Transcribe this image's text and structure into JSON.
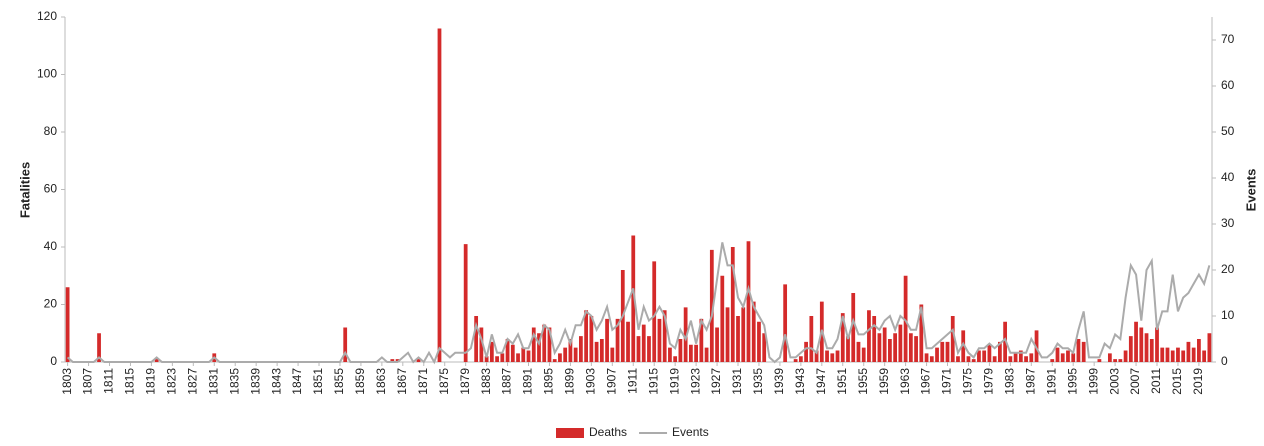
{
  "chart_data": {
    "type": "bar",
    "categories": [
      "1803",
      null,
      null,
      null,
      "1807",
      null,
      null,
      null,
      "1811",
      null,
      null,
      null,
      "1815",
      null,
      null,
      null,
      "1819",
      null,
      null,
      null,
      "1823",
      null,
      null,
      null,
      "1827",
      null,
      null,
      null,
      "1831",
      null,
      null,
      null,
      "1835",
      null,
      null,
      null,
      "1839",
      null,
      null,
      null,
      "1843",
      null,
      null,
      null,
      "1847",
      null,
      null,
      null,
      "1851",
      null,
      null,
      null,
      "1855",
      null,
      null,
      null,
      "1859",
      null,
      null,
      null,
      "1863",
      null,
      null,
      null,
      "1867",
      null,
      null,
      null,
      "1871",
      null,
      null,
      null,
      "1875",
      null,
      null,
      null,
      "1879",
      null,
      null,
      null,
      "1883",
      null,
      null,
      null,
      "1887",
      null,
      null,
      null,
      "1891",
      null,
      null,
      null,
      "1895",
      null,
      null,
      null,
      "1899",
      null,
      null,
      null,
      "1903",
      null,
      null,
      null,
      "1907",
      null,
      null,
      null,
      "1911",
      null,
      null,
      null,
      "1915",
      null,
      null,
      null,
      "1919",
      null,
      null,
      null,
      "1923",
      null,
      null,
      null,
      "1927",
      null,
      null,
      null,
      "1931",
      null,
      null,
      null,
      "1935",
      null,
      null,
      null,
      "1939",
      null,
      null,
      null,
      "1943",
      null,
      null,
      null,
      "1947",
      null,
      null,
      null,
      "1951",
      null,
      null,
      null,
      "1955",
      null,
      null,
      null,
      "1959",
      null,
      null,
      null,
      "1963",
      null,
      null,
      null,
      "1967",
      null,
      null,
      null,
      "1971",
      null,
      null,
      null,
      "1975",
      null,
      null,
      null,
      "1979",
      null,
      null,
      null,
      "1983",
      null,
      null,
      null,
      "1987",
      null,
      null,
      null,
      "1991",
      null,
      null,
      null,
      "1995",
      null,
      null,
      null,
      "1999",
      null,
      null,
      null,
      "2003",
      null,
      null,
      null,
      "2007",
      null,
      null,
      null,
      "2011",
      null,
      null,
      null,
      "2015",
      null,
      null,
      null,
      "2019",
      null,
      null
    ],
    "series": [
      {
        "name": "Deaths",
        "type": "bar",
        "color": "#d42a2a",
        "values": [
          26,
          0,
          0,
          0,
          0,
          0,
          10,
          0,
          0,
          0,
          0,
          0,
          0,
          0,
          0,
          0,
          0,
          1,
          0,
          0,
          0,
          0,
          0,
          0,
          0,
          0,
          0,
          0,
          3,
          0,
          0,
          0,
          0,
          0,
          0,
          0,
          0,
          0,
          0,
          0,
          0,
          0,
          0,
          0,
          0,
          0,
          0,
          0,
          0,
          0,
          0,
          0,
          0,
          12,
          0,
          0,
          0,
          0,
          0,
          0,
          0,
          0,
          1,
          1,
          0,
          0,
          0,
          1,
          0,
          0,
          0,
          116,
          0,
          0,
          0,
          0,
          41,
          0,
          16,
          12,
          2,
          7,
          2,
          3,
          8,
          6,
          3,
          5,
          4,
          12,
          10,
          13,
          12,
          1,
          3,
          5,
          8,
          5,
          9,
          18,
          16,
          7,
          8,
          15,
          5,
          15,
          32,
          14,
          44,
          9,
          13,
          9,
          35,
          15,
          18,
          5,
          2,
          8,
          19,
          6,
          6,
          15,
          5,
          39,
          12,
          30,
          19,
          40,
          16,
          19,
          42,
          21,
          14,
          10,
          0,
          0,
          0,
          27,
          0,
          1,
          2,
          7,
          16,
          4,
          21,
          4,
          3,
          4,
          17,
          9,
          24,
          7,
          5,
          18,
          16,
          10,
          12,
          8,
          10,
          13,
          30,
          10,
          9,
          20,
          3,
          2,
          5,
          7,
          7,
          16,
          2,
          11,
          2,
          1,
          4,
          4,
          6,
          2,
          7,
          14,
          2,
          3,
          4,
          2,
          3,
          11,
          0,
          0,
          1,
          5,
          3,
          4,
          3,
          8,
          7,
          0,
          0,
          1,
          0,
          3,
          1,
          1,
          4,
          9,
          14,
          12,
          10,
          8,
          12,
          5,
          5,
          4,
          5,
          4,
          7,
          5,
          8,
          4,
          10
        ]
      },
      {
        "name": "Events",
        "type": "line",
        "axis": "y2",
        "color": "#ababab",
        "values": [
          1,
          0,
          0,
          0,
          0,
          0,
          1,
          0,
          0,
          0,
          0,
          0,
          0,
          0,
          0,
          0,
          0,
          1,
          0,
          0,
          0,
          0,
          0,
          0,
          0,
          0,
          0,
          0,
          1,
          0,
          0,
          0,
          0,
          0,
          0,
          0,
          0,
          0,
          0,
          0,
          0,
          0,
          0,
          0,
          0,
          0,
          0,
          0,
          0,
          0,
          0,
          0,
          0,
          2,
          0,
          0,
          0,
          0,
          0,
          0,
          1,
          0,
          0,
          0,
          1,
          2,
          0,
          1,
          0,
          2,
          0,
          3,
          2,
          1,
          2,
          2,
          2,
          3,
          8,
          5,
          1,
          6,
          2,
          2,
          5,
          4,
          6,
          3,
          3,
          6,
          4,
          8,
          7,
          2,
          4,
          7,
          4,
          8,
          8,
          11,
          10,
          7,
          9,
          12,
          7,
          8,
          10,
          13,
          16,
          7,
          12,
          9,
          10,
          12,
          10,
          4,
          3,
          7,
          5,
          9,
          4,
          9,
          7,
          10,
          18,
          26,
          21,
          21,
          14,
          12,
          16,
          12,
          10,
          8,
          1,
          0,
          1,
          6,
          1,
          1,
          2,
          3,
          3,
          2,
          7,
          3,
          3,
          5,
          10,
          5,
          9,
          6,
          6,
          7,
          8,
          7,
          9,
          10,
          7,
          10,
          9,
          7,
          7,
          12,
          3,
          3,
          4,
          5,
          6,
          7,
          2,
          4,
          2,
          1,
          3,
          3,
          4,
          3,
          4,
          5,
          2,
          2,
          2,
          2,
          5,
          3,
          1,
          1,
          2,
          4,
          3,
          3,
          2,
          7,
          11,
          1,
          1,
          1,
          4,
          3,
          6,
          5,
          14,
          21,
          19,
          9,
          20,
          22,
          7,
          11,
          11,
          19,
          11,
          14,
          15,
          17,
          19,
          17,
          21
        ]
      }
    ],
    "y_label": "Fatalities",
    "y2_label": "Events",
    "ylim": [
      0,
      120
    ],
    "yticks": [
      0,
      20,
      40,
      60,
      80,
      100,
      120
    ],
    "y2lim": [
      0,
      75
    ],
    "y2ticks": [
      0,
      10,
      20,
      30,
      40,
      50,
      60,
      70
    ],
    "grid": false,
    "legend": "bottom"
  }
}
